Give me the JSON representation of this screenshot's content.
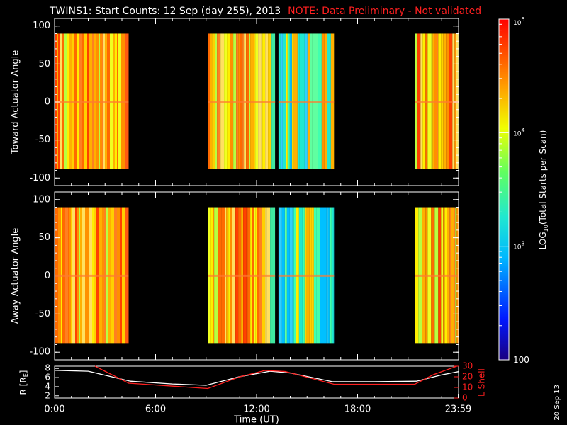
{
  "header": {
    "title": "TWINS1: Start Counts: 12 Sep (day 255), 2013",
    "note": "NOTE: Data Preliminary - Not validated"
  },
  "footer": {
    "stamp": "20 Sep 13"
  },
  "colors": {
    "background": "#000000",
    "text": "#ffffff",
    "note": "#ff2020",
    "lshell": "#ff2020",
    "r_line": "#ffffff"
  },
  "chart_data": [
    {
      "type": "heatmap",
      "name": "toward",
      "ylabel": "Toward Actuator Angle",
      "ylim": [
        -110,
        110
      ],
      "yticks": [
        100,
        50,
        0,
        -50,
        -100
      ],
      "ytick_labels": [
        "100",
        "50",
        "0",
        "-50",
        "-100"
      ],
      "xlim": [
        0,
        24
      ],
      "data_range_y": [
        -88,
        90
      ],
      "data_segments_hours": [
        [
          0,
          4.4
        ],
        [
          9.1,
          13.1
        ],
        [
          13.3,
          16.6
        ],
        [
          21.4,
          24
        ]
      ],
      "note": "color = LOG10(Total Starts per Scan), data present in listed time segments"
    },
    {
      "type": "heatmap",
      "name": "away",
      "ylabel": "Away Actuator Angle",
      "ylim": [
        -110,
        110
      ],
      "yticks": [
        100,
        50,
        0,
        -50,
        -100
      ],
      "ytick_labels": [
        "100",
        "50",
        "0",
        "-50",
        "-100"
      ],
      "xlim": [
        0,
        24
      ],
      "data_range_y": [
        -88,
        90
      ],
      "data_segments_hours": [
        [
          0,
          4.4
        ],
        [
          9.1,
          13.1
        ],
        [
          13.3,
          16.6
        ],
        [
          21.4,
          24
        ]
      ]
    },
    {
      "type": "line",
      "name": "orbit",
      "ylabel_left": "R [R",
      "ylabel_left_sub": "E",
      "ylabel_left_end": "]",
      "ylabel_right": "L Shell",
      "left_yticks": [
        "8",
        "6",
        "4",
        "2"
      ],
      "left_ylim": [
        1.5,
        8.5
      ],
      "right_yticks": [
        "30",
        "20",
        "10",
        "0"
      ],
      "right_ylim": [
        0,
        30
      ],
      "xtick_labels": [
        "0:00",
        "6:00",
        "12:00",
        "18:00",
        "23:59"
      ],
      "xtick_values": [
        0,
        6,
        12,
        18,
        23.98
      ],
      "xlabel": "Time (UT)",
      "series": [
        {
          "name": "R",
          "axis": "left",
          "color": "#ffffff",
          "x": [
            0,
            2,
            4.5,
            7,
            9,
            11,
            12.8,
            14,
            16.5,
            19,
            21.5,
            23,
            24
          ],
          "values": [
            7.6,
            7.4,
            5.2,
            4.6,
            4.3,
            6.2,
            7.4,
            7.0,
            5.1,
            5.1,
            5.2,
            6.6,
            7.3
          ]
        },
        {
          "name": "L Shell",
          "axis": "right",
          "color": "#ff2020",
          "x": [
            2.4,
            4.4,
            9.1,
            11,
            12.5,
            13.7,
            16.6,
            21.4,
            22.5,
            23.9
          ],
          "values": [
            30,
            14,
            9,
            20,
            26,
            25,
            13,
            13,
            22,
            30
          ]
        }
      ]
    }
  ],
  "colorbar": {
    "label_prefix": "LOG",
    "label_sub": "10",
    "label_suffix": "(Total Starts per Scan)",
    "tick_labels": [
      "10",
      "10",
      "10",
      "100"
    ],
    "tick_exponents": [
      "5",
      "4",
      "3",
      ""
    ],
    "tick_log_values": [
      5,
      4,
      3,
      2
    ]
  }
}
